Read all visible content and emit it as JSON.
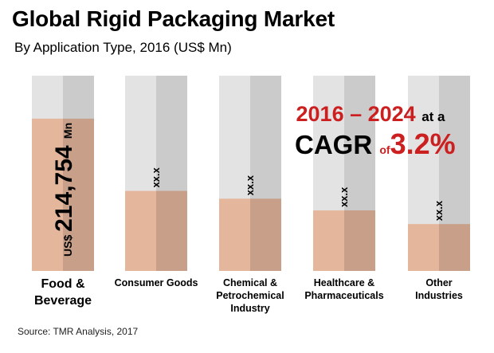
{
  "title": "Global Rigid Packaging Market",
  "subtitle": "By Application Type, 2016 (US$ Mn)",
  "source": "Source: TMR Analysis, 2017",
  "cagr": {
    "period": "2016 – 2024",
    "at_a": "at a",
    "cagr_label": "CAGR",
    "of": "of",
    "value": "3.2%"
  },
  "colors": {
    "track_left": "#e3e3e3",
    "track_right": "#cbcbcb",
    "fill_left": "#e4b79d",
    "fill_right": "#c89f88",
    "accent_red": "#cc1f1f"
  },
  "chart_data": {
    "type": "bar",
    "title": "Global Rigid Packaging Market",
    "subtitle": "By Application Type, 2016 (US$ Mn)",
    "categories": [
      [
        "Food &",
        "Beverage"
      ],
      [
        "Consumer  Goods"
      ],
      [
        "Chemical &",
        "Petrochemical",
        "Industry"
      ],
      [
        "Healthcare  &",
        "Pharmaceuticals"
      ],
      [
        "Other",
        "Industries"
      ]
    ],
    "fill_fraction": [
      0.78,
      0.41,
      0.37,
      0.31,
      0.24
    ],
    "value_labels": [
      {
        "prefix": "US$",
        "value": "214,754",
        "unit": "Mn"
      },
      {
        "value": "xx.x"
      },
      {
        "value": "xx.x"
      },
      {
        "value": "xx.x"
      },
      {
        "value": "xx.x"
      }
    ]
  }
}
